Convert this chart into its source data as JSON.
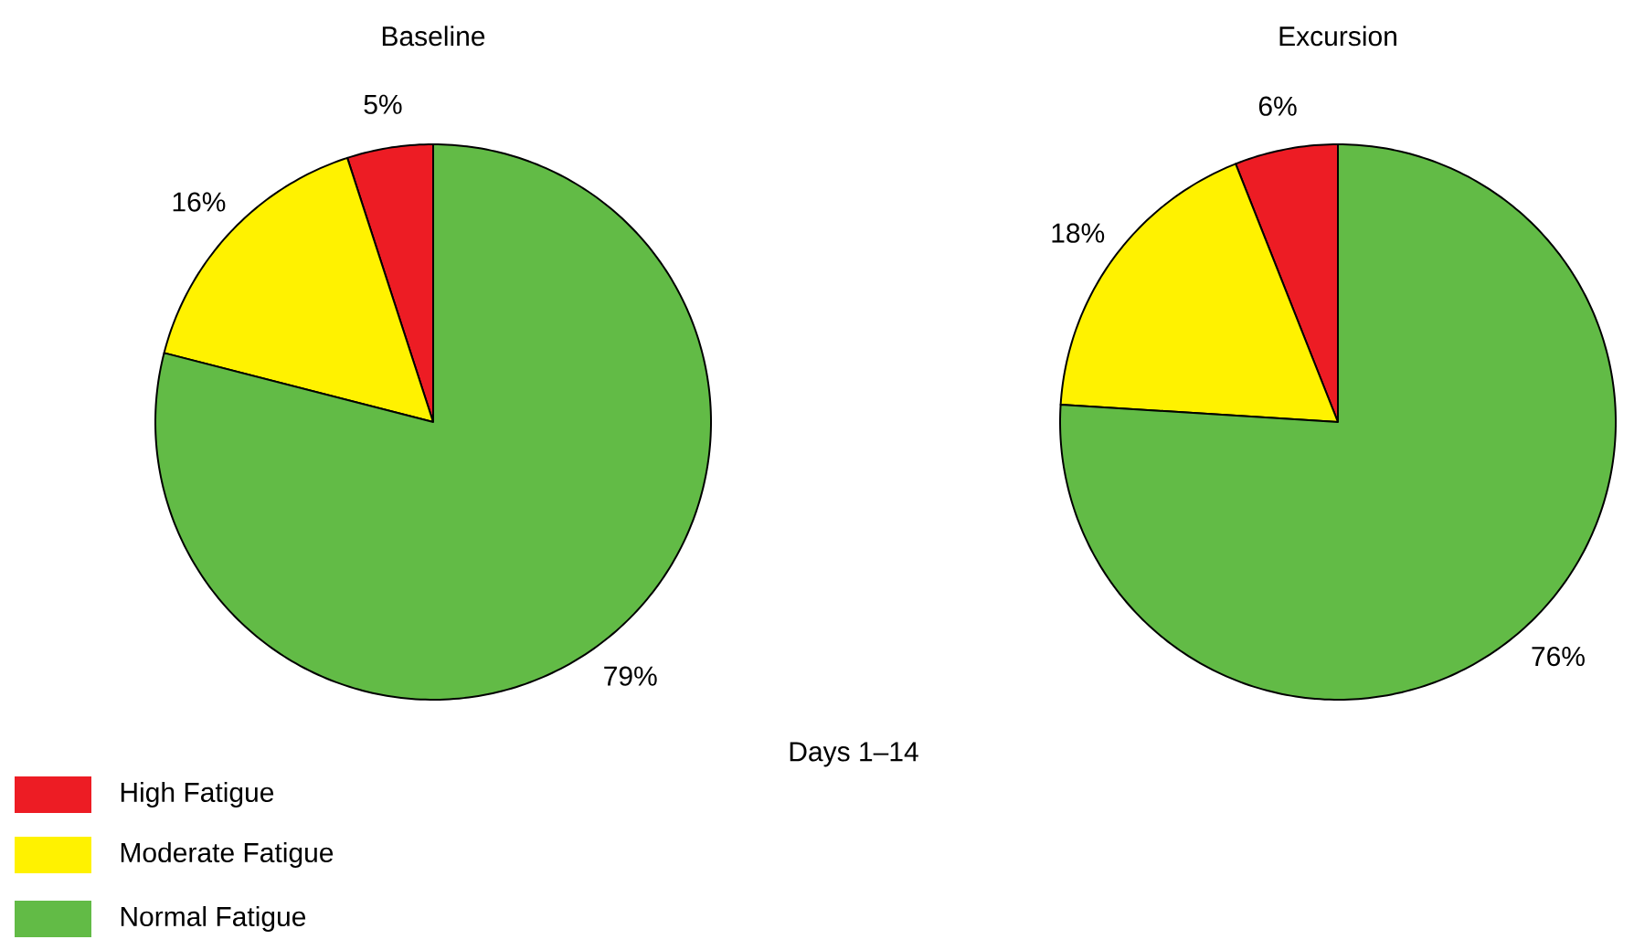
{
  "chart_data": [
    {
      "type": "pie",
      "title": "Baseline",
      "categories": [
        "High Fatigue",
        "Moderate Fatigue",
        "Normal Fatigue"
      ],
      "values": [
        5,
        16,
        79
      ],
      "value_labels": [
        "5%",
        "16%",
        "79%"
      ],
      "colors": [
        "#ed1c24",
        "#fff200",
        "#62bb46"
      ],
      "legend": "bottom left",
      "annotations": [
        "Days 1–14"
      ]
    },
    {
      "type": "pie",
      "title": "Excursion",
      "categories": [
        null,
        null,
        null
      ],
      "values": [
        6,
        18,
        76
      ],
      "value_labels": [
        "6%",
        "18%",
        "76%"
      ],
      "colors": [
        "#ed1c24",
        "#fff200",
        "#62bb46"
      ]
    }
  ]
}
